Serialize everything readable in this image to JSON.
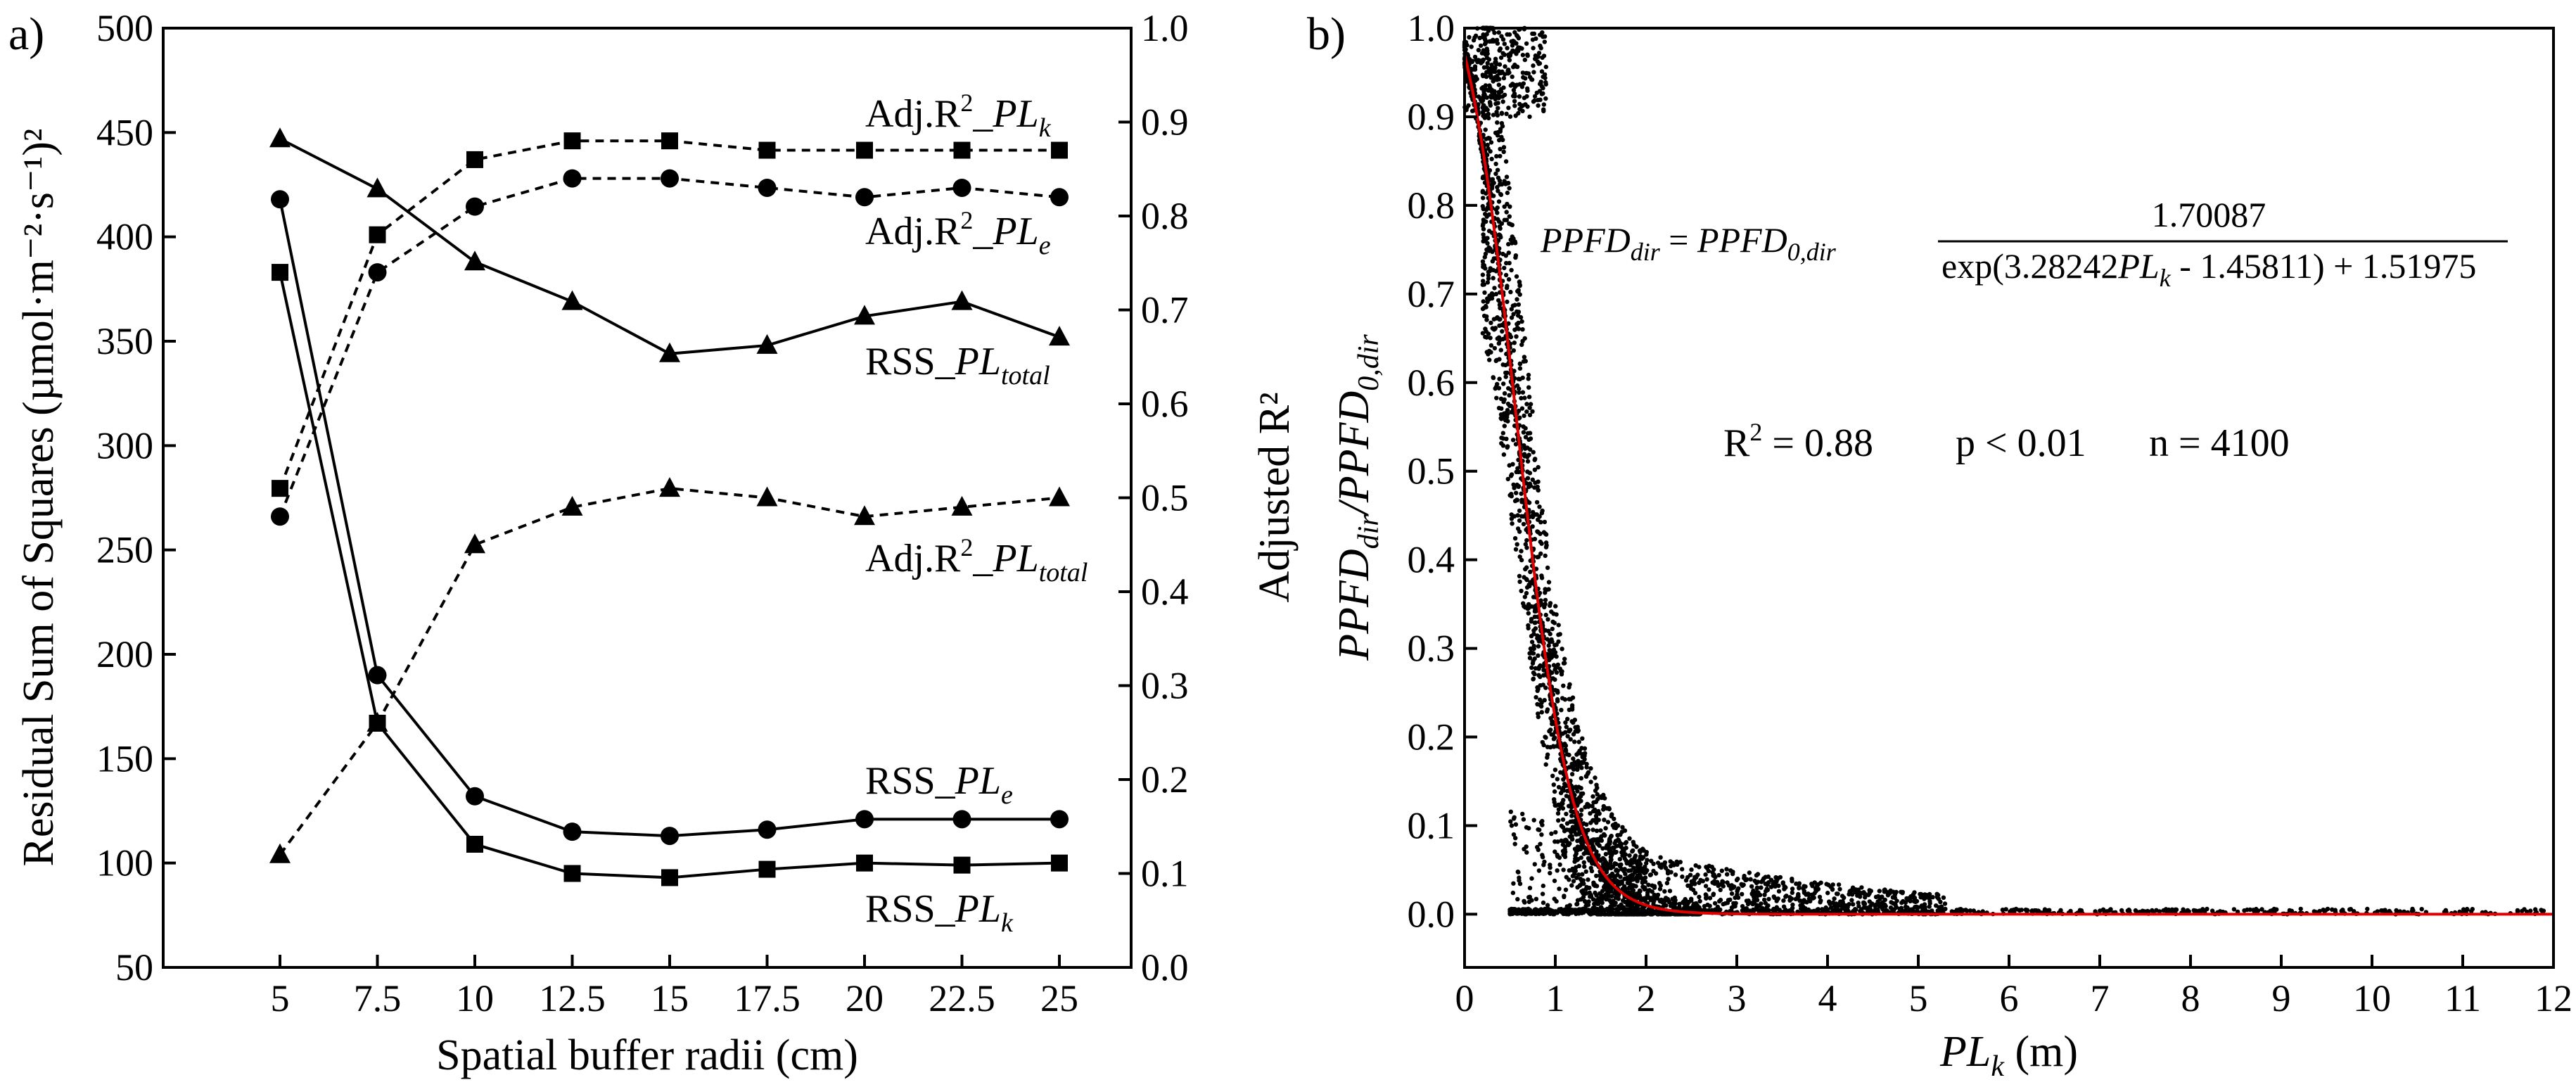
{
  "chart_data": [
    {
      "panel": "a)",
      "type": "line",
      "xlabel": "Spatial buffer radii (cm)",
      "x": [
        5,
        7.5,
        10,
        12.5,
        15,
        17.5,
        20,
        22.5,
        25
      ],
      "x_ticks": [
        "5",
        "7.5",
        "10",
        "12.5",
        "15",
        "17.5",
        "20",
        "22.5",
        "25"
      ],
      "ylabel_left": "Residual Sum of Squares (µmol·m⁻²·s⁻¹)²",
      "ylim_left": [
        50,
        500
      ],
      "yticks_left": [
        "50",
        "100",
        "150",
        "200",
        "250",
        "300",
        "350",
        "400",
        "450",
        "500"
      ],
      "ylabel_right": "Adjusted R²",
      "ylim_right": [
        0,
        1.0
      ],
      "yticks_right": [
        "0.0",
        "0.1",
        "0.2",
        "0.3",
        "0.4",
        "0.5",
        "0.6",
        "0.7",
        "0.8",
        "0.9",
        "1.0"
      ],
      "series": [
        {
          "name": "RSS_PL_total",
          "label_main": "RSS_",
          "label_sym": "PL",
          "label_sub": "total",
          "axis": "left",
          "marker": "triangle",
          "dash": "solid",
          "values": [
            447,
            423,
            388,
            369,
            344,
            348,
            362,
            369,
            352
          ]
        },
        {
          "name": "RSS_PL_e",
          "label_main": "RSS_",
          "label_sym": "PL",
          "label_sub": "e",
          "axis": "left",
          "marker": "circle",
          "dash": "solid",
          "values": [
            418,
            190,
            132,
            115,
            113,
            116,
            121,
            121,
            121
          ]
        },
        {
          "name": "RSS_PL_k",
          "label_main": "RSS_",
          "label_sym": "PL",
          "label_sub": "k",
          "axis": "left",
          "marker": "square",
          "dash": "solid",
          "values": [
            383,
            167,
            109,
            95,
            93,
            97,
            100,
            99,
            100
          ]
        },
        {
          "name": "Adj.R2_PL_k",
          "label_main": "Adj.R",
          "label_sup": "2",
          "label_sep": "_",
          "label_sym": "PL",
          "label_sub": "k",
          "axis": "right",
          "marker": "square",
          "dash": "dashed",
          "values": [
            0.51,
            0.78,
            0.86,
            0.88,
            0.88,
            0.87,
            0.87,
            0.87,
            0.87
          ]
        },
        {
          "name": "Adj.R2_PL_e",
          "label_main": "Adj.R",
          "label_sup": "2",
          "label_sep": "_",
          "label_sym": "PL",
          "label_sub": "e",
          "axis": "right",
          "marker": "circle",
          "dash": "dashed",
          "values": [
            0.48,
            0.74,
            0.81,
            0.84,
            0.84,
            0.83,
            0.82,
            0.83,
            0.82
          ]
        },
        {
          "name": "Adj.R2_PL_total",
          "label_main": "Adj.R",
          "label_sup": "2",
          "label_sep": "_",
          "label_sym": "PL",
          "label_sub": "total",
          "axis": "right",
          "marker": "triangle",
          "dash": "dashed",
          "values": [
            0.12,
            0.26,
            0.45,
            0.49,
            0.51,
            0.5,
            0.48,
            0.49,
            0.5
          ]
        }
      ]
    },
    {
      "panel": "b)",
      "type": "scatter",
      "xlabel_sym": "PL",
      "xlabel_sub": "k",
      "xlabel_unit": " (m)",
      "ylabel_num": "PPFD",
      "ylabel_num_sub": "dir",
      "ylabel_den": "/PPFD",
      "ylabel_den_sub": "0,dir",
      "xlim": [
        0,
        12
      ],
      "ylim": [
        -0.06,
        1.0
      ],
      "xticks": [
        "0",
        "1",
        "2",
        "3",
        "4",
        "5",
        "6",
        "7",
        "8",
        "9",
        "10",
        "11",
        "12"
      ],
      "yticks": [
        "0.0",
        "0.1",
        "0.2",
        "0.3",
        "0.4",
        "0.5",
        "0.6",
        "0.7",
        "0.8",
        "0.9",
        "1.0"
      ],
      "n_points": 4100,
      "fit": {
        "name": "fitted curve",
        "color": "#e00000",
        "model": "y = 1.70087 / (exp(3.28242*x - 1.45811) + 1.51975)",
        "params": {
          "numerator": 1.70087,
          "a": 3.28242,
          "b": 1.45811,
          "c": 1.51975
        }
      },
      "equation": {
        "lhs": "PPFD",
        "lhs_sub": "dir",
        "eq": " = ",
        "rhs": "PPFD",
        "rhs_sub": "0,dir",
        "numerator": "1.70087",
        "den_pre": "exp(3.28242",
        "den_sym": "PL",
        "den_sub": "k",
        "den_post": " - 1.45811) + 1.51975"
      },
      "stats": {
        "r2_label": "R",
        "r2_sup": "2",
        "r2_value": " = 0.88",
        "p": "p < 0.01",
        "n": "n  = 4100"
      }
    }
  ]
}
